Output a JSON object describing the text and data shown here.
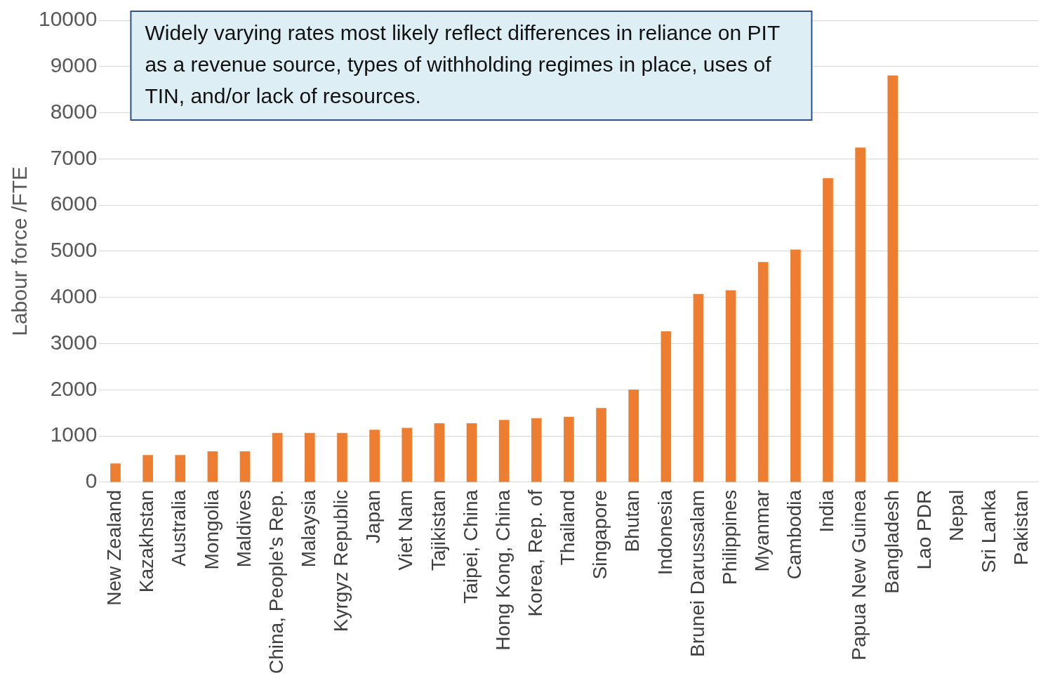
{
  "chart_data": {
    "type": "bar",
    "ylabel": "Labour force /FTE",
    "categories": [
      "New Zealand",
      "Kazakhstan",
      "Australia",
      "Mongolia",
      "Maldives",
      "China, People's Rep.",
      "Malaysia",
      "Kyrgyz Republic",
      "Japan",
      "Viet Nam",
      "Tajikistan",
      "Taipei, China",
      "Hong Kong, China",
      "Korea, Rep. of",
      "Thailand",
      "Singapore",
      "Bhutan",
      "Indonesia",
      "Brunei Darussalam",
      "Philippines",
      "Myanmar",
      "Cambodia",
      "India",
      "Papua New Guinea",
      "Bangladesh",
      "Lao PDR",
      "Nepal",
      "Sri Lanka",
      "Pakistan"
    ],
    "values": [
      400,
      580,
      580,
      660,
      660,
      1060,
      1060,
      1060,
      1130,
      1170,
      1270,
      1270,
      1340,
      1380,
      1410,
      1600,
      2000,
      3260,
      4070,
      4150,
      4760,
      5030,
      6580,
      7240,
      8800,
      null,
      null,
      null,
      null
    ],
    "color": "#ed7d31",
    "ylim": [
      0,
      10000
    ],
    "yticks": [
      0,
      1000,
      2000,
      3000,
      4000,
      5000,
      6000,
      7000,
      8000,
      9000,
      10000
    ],
    "grid": "y",
    "annotations": [
      "Widely varying rates most likely reflect differences in reliance on PIT as a revenue source, types of withholding regimes in place, uses of TIN, and/or lack of resources."
    ]
  }
}
